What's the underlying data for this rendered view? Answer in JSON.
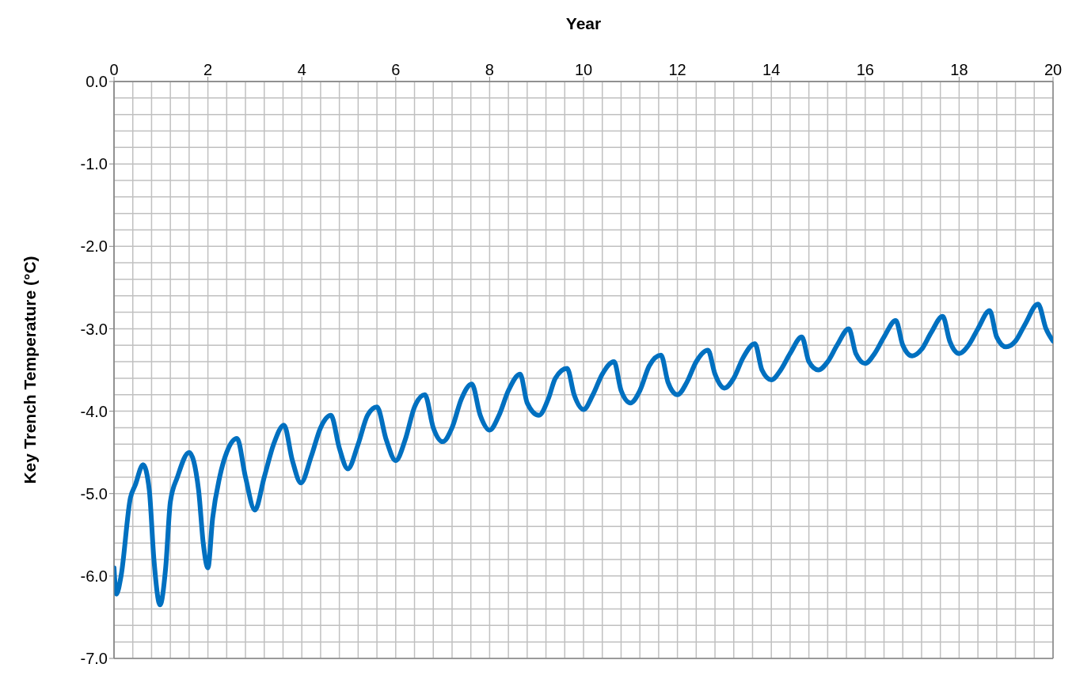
{
  "chart_data": {
    "type": "line",
    "xlabel": "Year",
    "ylabel": "Key Trench Temperature (°C)",
    "xlim": [
      0,
      20
    ],
    "xticks": [
      0,
      2,
      4,
      6,
      8,
      10,
      12,
      14,
      16,
      18,
      20
    ],
    "ylim": [
      -7,
      0
    ],
    "yticks": [
      {
        "value": 0,
        "label": "0.0"
      },
      {
        "value": -1,
        "label": "-1.0"
      },
      {
        "value": -2,
        "label": "-2.0"
      },
      {
        "value": -3,
        "label": "-3.0"
      },
      {
        "value": -4,
        "label": "-4.0"
      },
      {
        "value": -5,
        "label": "-5.0"
      },
      {
        "value": -6,
        "label": "-6.0"
      },
      {
        "value": -7,
        "label": "-7.0"
      }
    ],
    "grid": true,
    "marker": "none",
    "line_style": "solid",
    "series": [
      {
        "color": "#0070c0",
        "x": [
          0.0,
          0.05,
          0.15,
          0.35,
          0.45,
          0.62,
          0.75,
          0.85,
          0.98,
          1.1,
          1.2,
          1.35,
          1.6,
          1.8,
          1.9,
          2.0,
          2.1,
          2.25,
          2.4,
          2.62,
          2.8,
          3.0,
          3.2,
          3.4,
          3.62,
          3.8,
          3.98,
          4.2,
          4.4,
          4.62,
          4.8,
          4.98,
          5.2,
          5.4,
          5.6,
          5.8,
          6.0,
          6.2,
          6.4,
          6.62,
          6.8,
          7.0,
          7.2,
          7.4,
          7.62,
          7.8,
          8.0,
          8.2,
          8.4,
          8.65,
          8.8,
          9.05,
          9.25,
          9.4,
          9.65,
          9.8,
          10.0,
          10.2,
          10.4,
          10.65,
          10.8,
          11.0,
          11.2,
          11.4,
          11.65,
          11.8,
          12.0,
          12.2,
          12.4,
          12.65,
          12.8,
          13.0,
          13.2,
          13.4,
          13.65,
          13.8,
          14.0,
          14.2,
          14.4,
          14.65,
          14.8,
          15.0,
          15.2,
          15.4,
          15.65,
          15.8,
          16.0,
          16.2,
          16.4,
          16.65,
          16.8,
          17.0,
          17.2,
          17.4,
          17.65,
          17.8,
          18.0,
          18.2,
          18.4,
          18.65,
          18.8,
          19.0,
          19.2,
          19.4,
          19.68,
          19.85,
          20.0
        ],
        "values": [
          -5.9,
          -6.22,
          -6.0,
          -5.05,
          -4.9,
          -4.65,
          -4.95,
          -5.8,
          -6.35,
          -5.9,
          -5.1,
          -4.8,
          -4.5,
          -4.95,
          -5.6,
          -5.9,
          -5.3,
          -4.8,
          -4.5,
          -4.33,
          -4.8,
          -5.2,
          -4.8,
          -4.4,
          -4.17,
          -4.6,
          -4.87,
          -4.55,
          -4.2,
          -4.05,
          -4.45,
          -4.7,
          -4.4,
          -4.05,
          -3.95,
          -4.35,
          -4.6,
          -4.35,
          -3.95,
          -3.8,
          -4.2,
          -4.37,
          -4.2,
          -3.85,
          -3.67,
          -4.05,
          -4.23,
          -4.05,
          -3.75,
          -3.55,
          -3.9,
          -4.05,
          -3.85,
          -3.6,
          -3.48,
          -3.8,
          -3.98,
          -3.8,
          -3.55,
          -3.4,
          -3.75,
          -3.9,
          -3.75,
          -3.45,
          -3.32,
          -3.65,
          -3.8,
          -3.65,
          -3.4,
          -3.26,
          -3.55,
          -3.72,
          -3.6,
          -3.35,
          -3.18,
          -3.5,
          -3.62,
          -3.5,
          -3.3,
          -3.1,
          -3.4,
          -3.5,
          -3.4,
          -3.2,
          -3.0,
          -3.3,
          -3.42,
          -3.3,
          -3.1,
          -2.9,
          -3.2,
          -3.33,
          -3.25,
          -3.05,
          -2.85,
          -3.15,
          -3.3,
          -3.2,
          -3.0,
          -2.78,
          -3.1,
          -3.22,
          -3.15,
          -2.95,
          -2.7,
          -3.0,
          -3.15
        ]
      }
    ]
  }
}
